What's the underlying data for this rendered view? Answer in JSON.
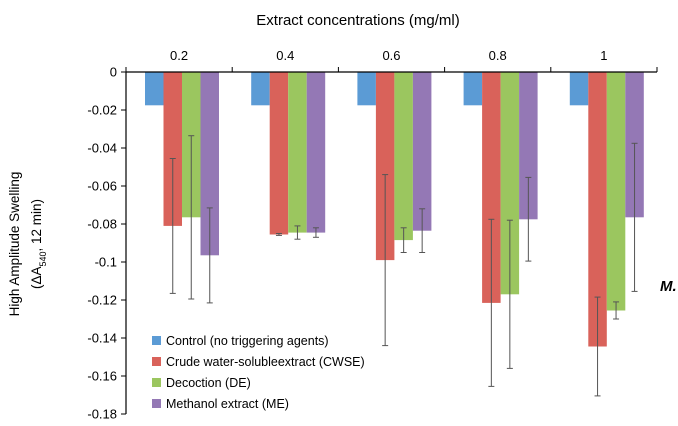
{
  "chart_data": {
    "type": "bar",
    "title": "Extract concentrations (mg/ml)",
    "ylabel_line1": "High Amplitude Swelling",
    "ylabel_line2_prefix": "(ΔA",
    "ylabel_line2_sub": "540",
    "ylabel_line2_suffix": ", 12 min)",
    "corner_text": "M.",
    "categories": [
      "0.2",
      "0.4",
      "0.6",
      "0.8",
      "1"
    ],
    "ylim": [
      -0.18,
      0
    ],
    "yticks": [
      0,
      -0.02,
      -0.04,
      -0.06,
      -0.08,
      -0.1,
      -0.12,
      -0.14,
      -0.16,
      -0.18
    ],
    "ytick_labels": [
      "0",
      "-0.02",
      "-0.04",
      "-0.06",
      "-0.08",
      "-0.1",
      "-0.12",
      "-0.14",
      "-0.16",
      "-0.18"
    ],
    "grid": false,
    "legend_position": "bottom-left",
    "series": [
      {
        "name": "Control (no triggering agents)",
        "color": "#5b9bd5",
        "values": [
          -0.0175,
          -0.0175,
          -0.0175,
          -0.0175,
          -0.0175
        ],
        "errors": [
          0,
          0,
          0,
          0,
          0
        ]
      },
      {
        "name": "Crude water-solubleextract (CWSE)",
        "color": "#d9625a",
        "values": [
          -0.081,
          -0.0855,
          -0.099,
          -0.1215,
          -0.1445
        ],
        "errors": [
          0.0355,
          0.0005,
          0.045,
          0.044,
          0.026
        ]
      },
      {
        "name": "Decoction (DE)",
        "color": "#9bc65f",
        "values": [
          -0.0765,
          -0.0845,
          -0.0885,
          -0.117,
          -0.1255
        ],
        "errors": [
          0.043,
          0.0035,
          0.0065,
          0.039,
          0.0045
        ]
      },
      {
        "name": "Methanol extract (ME)",
        "color": "#9478b5",
        "values": [
          -0.0965,
          -0.0845,
          -0.0835,
          -0.0775,
          -0.0765
        ],
        "errors": [
          0.025,
          0.0025,
          0.0115,
          0.022,
          0.039
        ]
      }
    ]
  }
}
